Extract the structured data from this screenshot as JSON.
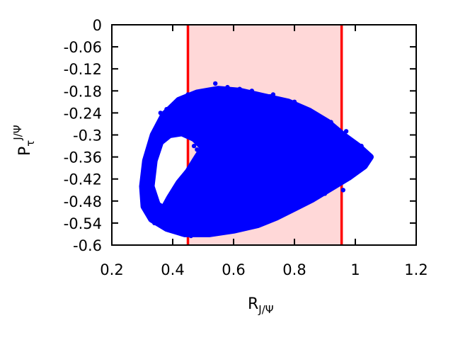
{
  "chart_data": {
    "type": "scatter",
    "title": "",
    "xlabel": {
      "main": "R",
      "sub": "J/Ψ"
    },
    "ylabel": {
      "main": "P",
      "sub": "τ",
      "sup": "J/Ψ"
    },
    "xlim": [
      0.2,
      1.2
    ],
    "ylim": [
      -0.6,
      0
    ],
    "x_ticks": [
      0.2,
      0.4,
      0.6,
      0.8,
      1.0,
      1.2
    ],
    "x_tick_labels": [
      "0.2",
      "0.4",
      "0.6",
      "0.8",
      "1",
      "1.2"
    ],
    "y_ticks": [
      0,
      -0.06,
      -0.12,
      -0.18,
      -0.24,
      -0.3,
      -0.36,
      -0.42,
      -0.48,
      -0.54,
      -0.6
    ],
    "y_tick_labels": [
      "0",
      "-0.06",
      "-0.12",
      "-0.18",
      "-0.24",
      "-0.3",
      "-0.36",
      "-0.42",
      "-0.48",
      "-0.54",
      "-0.6"
    ],
    "grid": false,
    "shaded_band": {
      "x_range": [
        0.45,
        0.955
      ],
      "fill": "#ffd8d8",
      "edge_color": "#ff0000"
    },
    "series": [
      {
        "color": "#0000ff",
        "region_outline": [
          [
            0.3,
            -0.44
          ],
          [
            0.31,
            -0.37
          ],
          [
            0.335,
            -0.3
          ],
          [
            0.37,
            -0.245
          ],
          [
            0.42,
            -0.205
          ],
          [
            0.48,
            -0.185
          ],
          [
            0.55,
            -0.175
          ],
          [
            0.62,
            -0.18
          ],
          [
            0.7,
            -0.195
          ],
          [
            0.78,
            -0.21
          ],
          [
            0.85,
            -0.235
          ],
          [
            0.91,
            -0.265
          ],
          [
            0.96,
            -0.3
          ],
          [
            1.01,
            -0.33
          ],
          [
            1.05,
            -0.36
          ],
          [
            1.03,
            -0.385
          ],
          [
            0.98,
            -0.415
          ],
          [
            0.92,
            -0.445
          ],
          [
            0.86,
            -0.475
          ],
          [
            0.8,
            -0.5
          ],
          [
            0.74,
            -0.525
          ],
          [
            0.68,
            -0.545
          ],
          [
            0.6,
            -0.56
          ],
          [
            0.52,
            -0.57
          ],
          [
            0.44,
            -0.57
          ],
          [
            0.38,
            -0.555
          ],
          [
            0.33,
            -0.53
          ],
          [
            0.305,
            -0.495
          ]
        ],
        "hole_outline": [
          [
            0.33,
            -0.44
          ],
          [
            0.34,
            -0.37
          ],
          [
            0.36,
            -0.32
          ],
          [
            0.39,
            -0.3
          ],
          [
            0.43,
            -0.295
          ],
          [
            0.47,
            -0.31
          ],
          [
            0.5,
            -0.335
          ],
          [
            0.48,
            -0.36
          ],
          [
            0.45,
            -0.4
          ],
          [
            0.42,
            -0.43
          ],
          [
            0.39,
            -0.47
          ],
          [
            0.37,
            -0.5
          ],
          [
            0.35,
            -0.49
          ]
        ],
        "points": [
          [
            0.47,
            -0.33
          ],
          [
            0.48,
            -0.34
          ],
          [
            0.49,
            -0.33
          ],
          [
            0.52,
            -0.31
          ],
          [
            0.5,
            -0.32
          ],
          [
            0.58,
            -0.17
          ],
          [
            0.62,
            -0.175
          ],
          [
            0.66,
            -0.18
          ],
          [
            0.72,
            -0.195
          ],
          [
            0.73,
            -0.19
          ],
          [
            0.8,
            -0.21
          ],
          [
            0.88,
            -0.255
          ],
          [
            0.92,
            -0.265
          ],
          [
            0.95,
            -0.29
          ],
          [
            0.97,
            -0.29
          ],
          [
            1.02,
            -0.33
          ],
          [
            1.04,
            -0.35
          ],
          [
            1.05,
            -0.36
          ],
          [
            1.03,
            -0.38
          ],
          [
            1.0,
            -0.4
          ],
          [
            0.94,
            -0.43
          ],
          [
            0.96,
            -0.45
          ],
          [
            0.9,
            -0.46
          ],
          [
            0.85,
            -0.48
          ],
          [
            0.82,
            -0.49
          ],
          [
            0.7,
            -0.53
          ],
          [
            0.64,
            -0.55
          ],
          [
            0.56,
            -0.565
          ],
          [
            0.46,
            -0.575
          ],
          [
            0.4,
            -0.56
          ],
          [
            0.34,
            -0.54
          ],
          [
            0.31,
            -0.5
          ],
          [
            0.3,
            -0.45
          ],
          [
            0.31,
            -0.39
          ],
          [
            0.33,
            -0.33
          ],
          [
            0.36,
            -0.27
          ],
          [
            0.4,
            -0.22
          ],
          [
            0.45,
            -0.19
          ],
          [
            0.51,
            -0.18
          ],
          [
            0.54,
            -0.16
          ],
          [
            0.36,
            -0.24
          ],
          [
            0.38,
            -0.23
          ],
          [
            0.55,
            -0.3
          ],
          [
            0.6,
            -0.28
          ],
          [
            0.65,
            -0.26
          ],
          [
            0.62,
            -0.35
          ],
          [
            0.7,
            -0.38
          ],
          [
            0.78,
            -0.4
          ],
          [
            0.83,
            -0.36
          ],
          [
            0.88,
            -0.33
          ],
          [
            0.57,
            -0.45
          ],
          [
            0.63,
            -0.47
          ],
          [
            0.68,
            -0.43
          ],
          [
            0.75,
            -0.46
          ],
          [
            0.48,
            -0.5
          ],
          [
            0.52,
            -0.54
          ],
          [
            0.44,
            -0.52
          ],
          [
            0.58,
            -0.52
          ],
          [
            0.66,
            -0.5
          ],
          [
            0.73,
            -0.32
          ],
          [
            0.79,
            -0.28
          ],
          [
            0.86,
            -0.3
          ],
          [
            0.91,
            -0.38
          ],
          [
            0.94,
            -0.36
          ],
          [
            0.99,
            -0.34
          ],
          [
            0.43,
            -0.22
          ],
          [
            0.47,
            -0.24
          ],
          [
            0.53,
            -0.22
          ],
          [
            0.59,
            -0.21
          ],
          [
            0.67,
            -0.22
          ]
        ]
      }
    ]
  }
}
